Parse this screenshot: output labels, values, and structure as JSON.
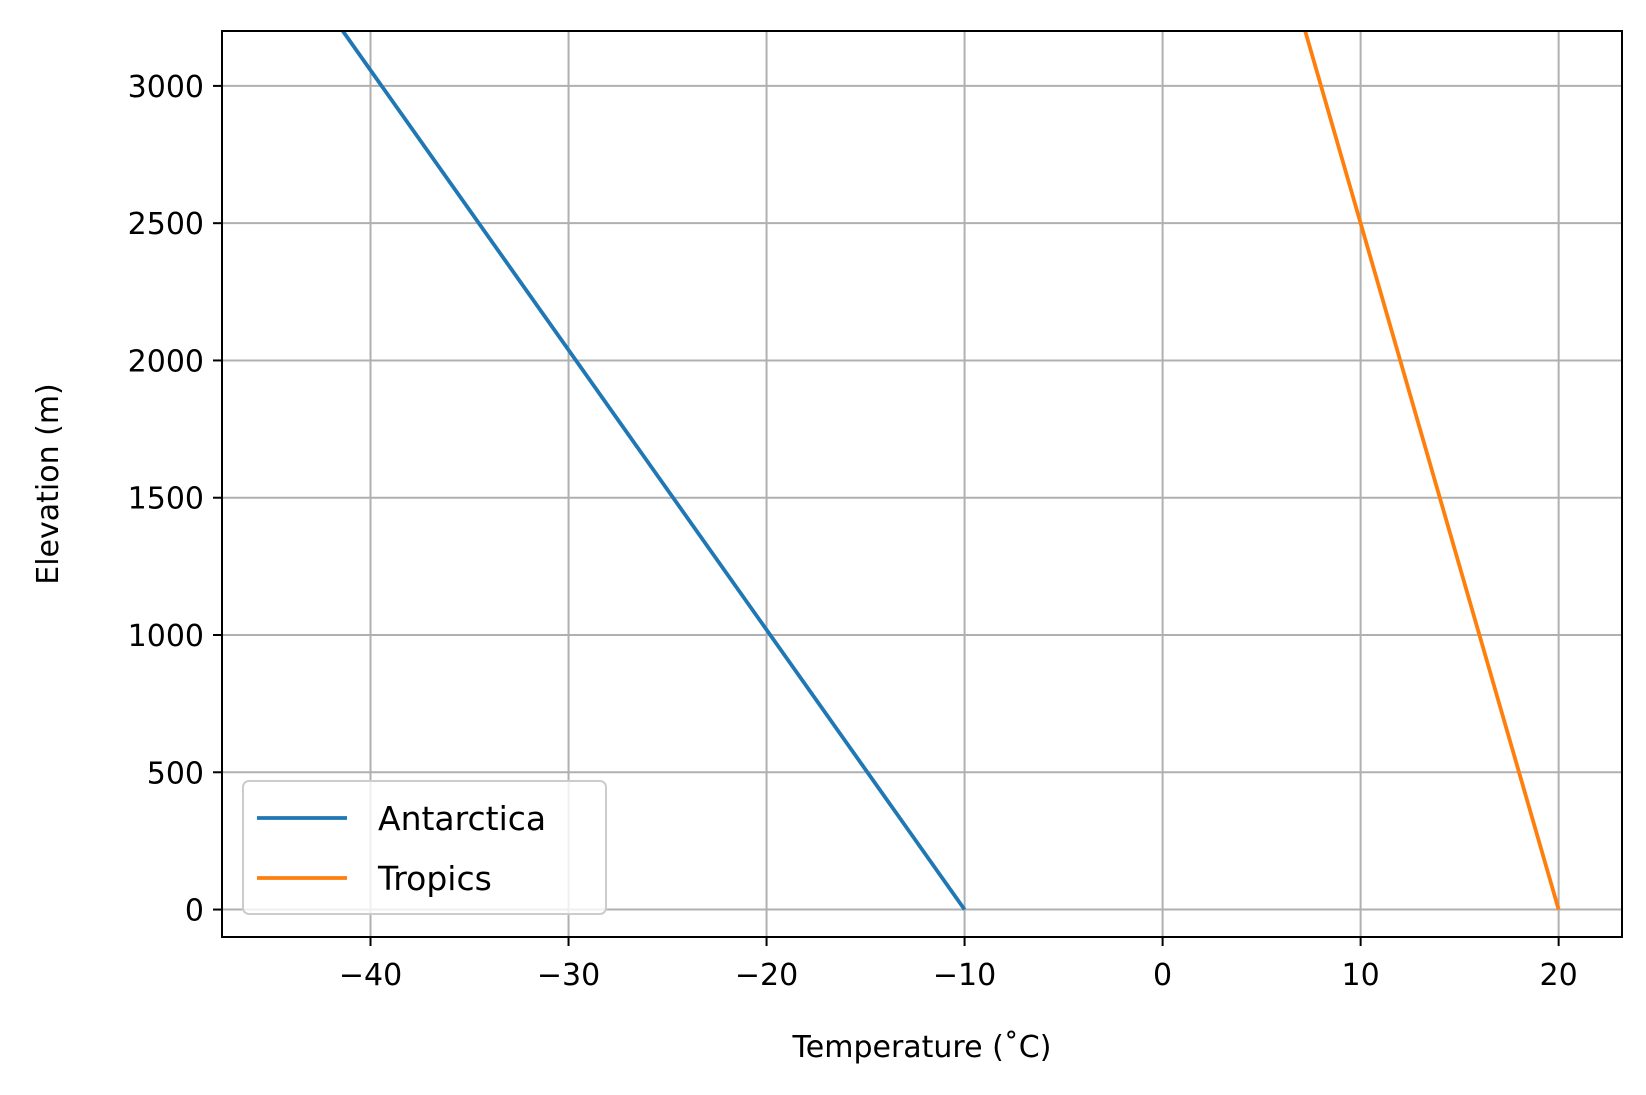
{
  "chart_data": {
    "type": "line",
    "title": "",
    "xlabel": "Temperature (˚C)",
    "ylabel": "Elevation (m)",
    "xlim": [
      -47.5,
      23.2
    ],
    "ylim": [
      -100,
      3200
    ],
    "xticks": [
      -40,
      -30,
      -20,
      -10,
      0,
      10,
      20
    ],
    "xtick_labels": [
      "−40",
      "−30",
      "−20",
      "−10",
      "0",
      "10",
      "20"
    ],
    "yticks": [
      0,
      500,
      1000,
      1500,
      2000,
      2500,
      3000
    ],
    "ytick_labels": [
      "0",
      "500",
      "1000",
      "1500",
      "2000",
      "2500",
      "3000"
    ],
    "grid": true,
    "legend_position": "lower-left",
    "series": [
      {
        "name": "Antarctica",
        "color": "#1f77b4",
        "x": [
          -10,
          -41.4
        ],
        "y": [
          0,
          3200
        ]
      },
      {
        "name": "Tropics",
        "color": "#ff7f0e",
        "x": [
          20,
          7.2
        ],
        "y": [
          0,
          3200
        ]
      }
    ]
  }
}
